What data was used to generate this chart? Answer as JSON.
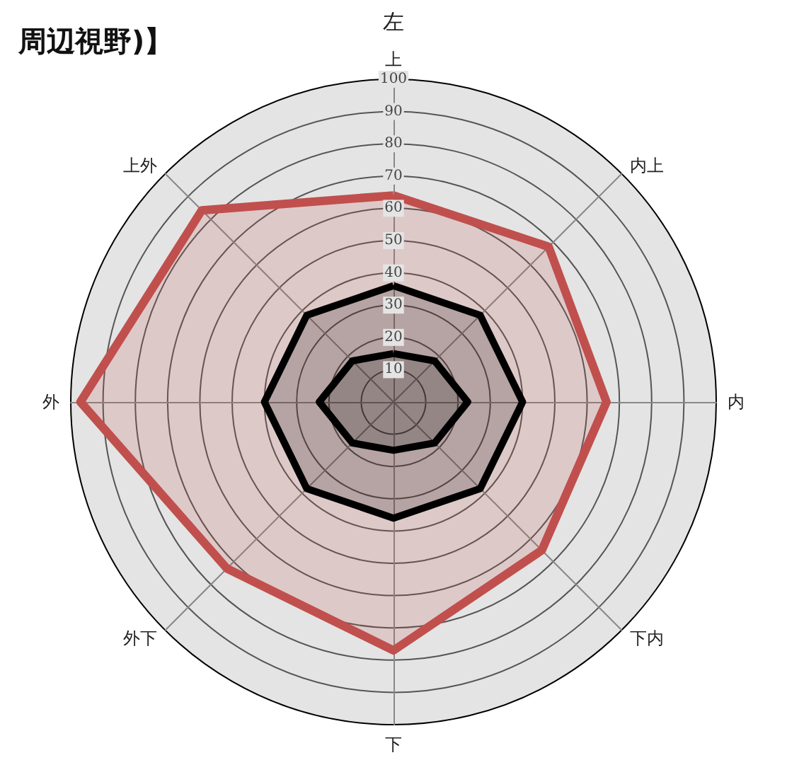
{
  "chart_data": {
    "type": "radar",
    "title": "周辺視野)】",
    "annotations": [
      "左"
    ],
    "categories": [
      "上",
      "内上",
      "内",
      "下内",
      "下",
      "外下",
      "外",
      "上外"
    ],
    "series": [
      {
        "color": "#c0504d",
        "values": [
          64,
          68,
          66,
          65,
          77,
          73,
          97,
          84
        ]
      },
      {
        "color": "#000000",
        "values": [
          36,
          38,
          40,
          38,
          36,
          38,
          40,
          38
        ]
      },
      {
        "color": "#000000",
        "values": [
          15,
          18,
          23,
          18,
          15,
          18,
          23,
          18
        ]
      }
    ],
    "ylim": [
      0,
      100
    ],
    "yticks": [
      10,
      20,
      30,
      40,
      50,
      60,
      70,
      80,
      90,
      100
    ],
    "grid": true
  }
}
